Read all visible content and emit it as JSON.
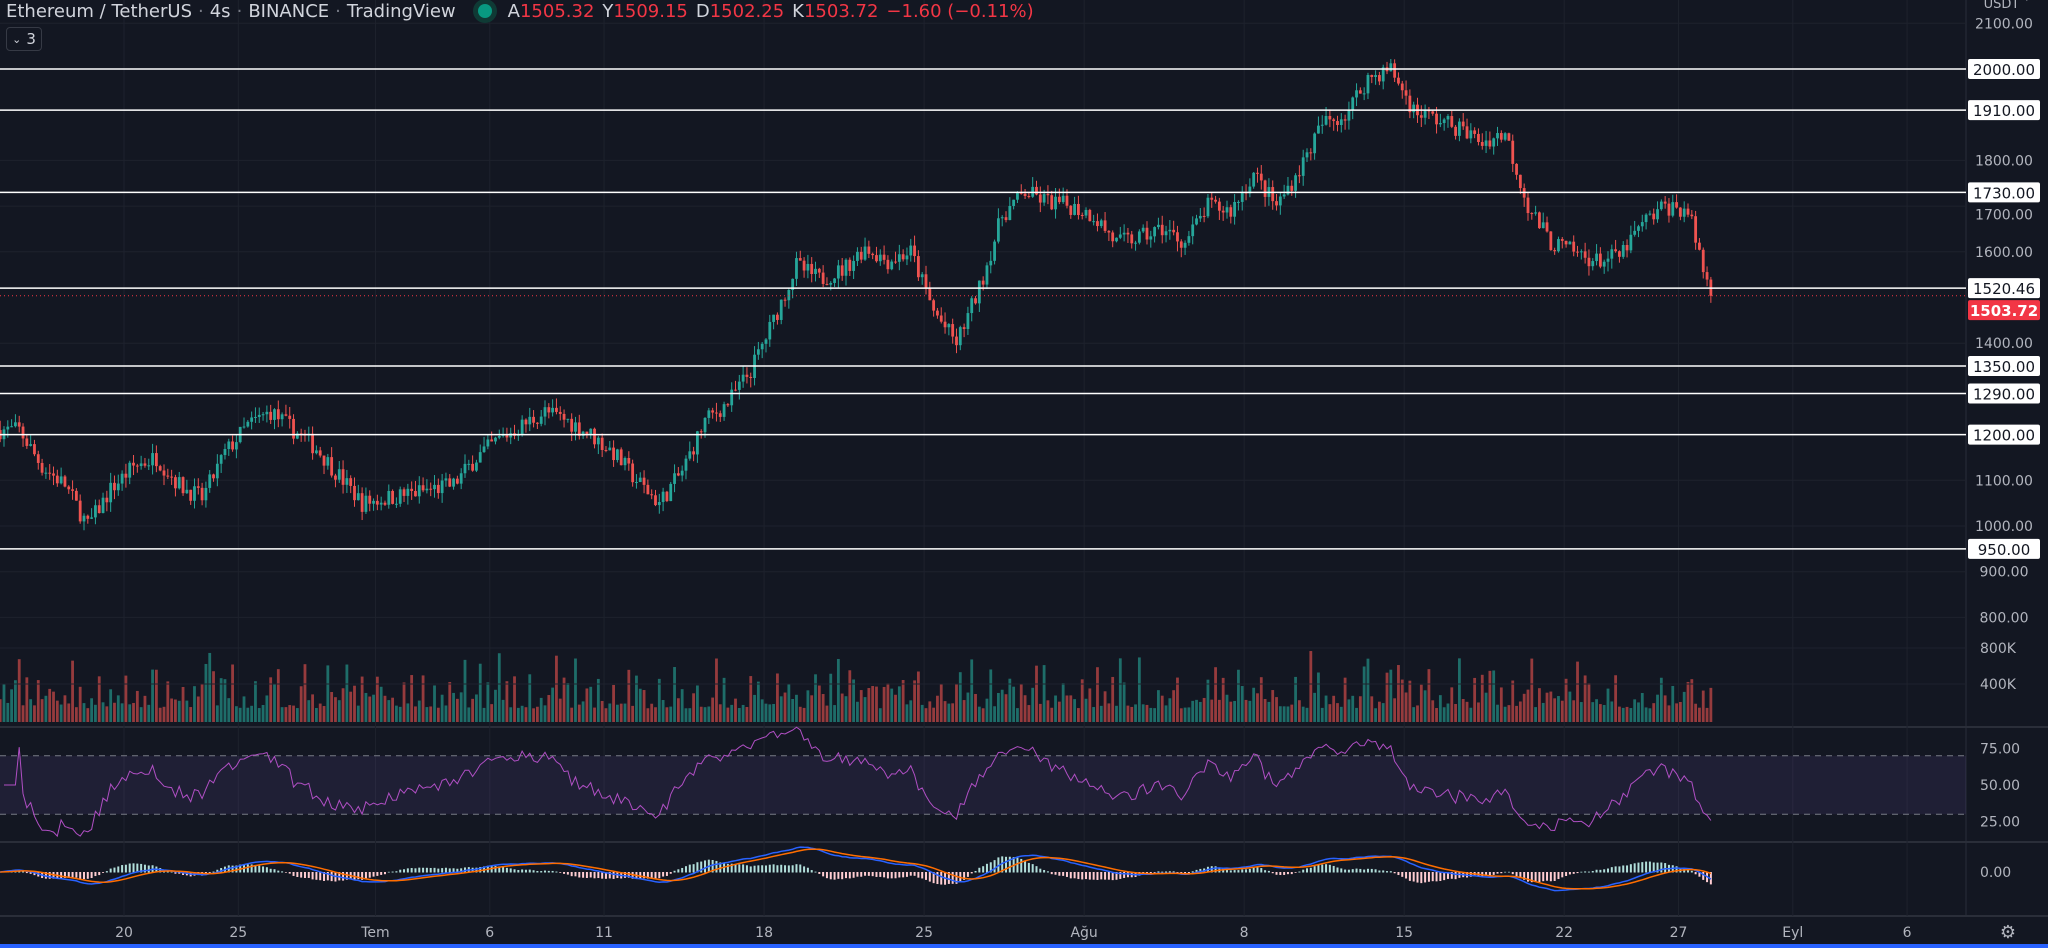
{
  "header": {
    "symbol": "Ethereum / TetherUS",
    "interval": "4s",
    "exchange": "BINANCE",
    "source": "TradingView",
    "ohlc": [
      {
        "key": "A",
        "value": "1505.32"
      },
      {
        "key": "Y",
        "value": "1509.15"
      },
      {
        "key": "D",
        "value": "1502.25"
      },
      {
        "key": "K",
        "value": "1503.72"
      }
    ],
    "change": "−1.60 (−0.11%)",
    "indicator_count": "3",
    "currency": "USDT"
  },
  "colors": {
    "background": "#131722",
    "up": "#26a69a",
    "down": "#ef5350",
    "last_price": "#f23645",
    "rsi": "#b04fc4",
    "macd": "#2962ff",
    "signal": "#ff6d00",
    "level_line": "#ffffff"
  },
  "chart_data": {
    "type": "candlestick",
    "title": "Ethereum / TetherUS",
    "price_axis": {
      "ylim": [
        800,
        2100
      ],
      "ticks": [
        "2100.00",
        "2000.00",
        "1800.00",
        "1700.00",
        "1600.00",
        "1400.00",
        "1100.00",
        "1000.00",
        "900.00",
        "800.00"
      ]
    },
    "levels": [
      "2000.00",
      "1910.00",
      "1730.00",
      "1520.46",
      "1350.00",
      "1290.00",
      "1200.00",
      "950.00"
    ],
    "last_price": "1503.72",
    "time_axis": [
      {
        "label": "20",
        "date": "06-20"
      },
      {
        "label": "25",
        "date": "06-25"
      },
      {
        "label": "Tem",
        "date": "07-01"
      },
      {
        "label": "6",
        "date": "07-06"
      },
      {
        "label": "11",
        "date": "07-11"
      },
      {
        "label": "18",
        "date": "07-18"
      },
      {
        "label": "25",
        "date": "07-25"
      },
      {
        "label": "Ağu",
        "date": "08-01"
      },
      {
        "label": "8",
        "date": "08-08"
      },
      {
        "label": "15",
        "date": "08-15"
      },
      {
        "label": "22",
        "date": "08-22"
      },
      {
        "label": "27",
        "date": "08-27"
      },
      {
        "label": "Eyl",
        "date": "09-01"
      },
      {
        "label": "6",
        "date": "09-06"
      }
    ],
    "daily_close_start": "06-15",
    "daily_close": [
      1210,
      1130,
      1090,
      1000,
      1080,
      1130,
      1150,
      1090,
      1060,
      1160,
      1220,
      1250,
      1210,
      1170,
      1110,
      1050,
      1060,
      1070,
      1080,
      1090,
      1150,
      1190,
      1220,
      1250,
      1230,
      1200,
      1160,
      1100,
      1050,
      1120,
      1230,
      1270,
      1340,
      1450,
      1570,
      1540,
      1560,
      1610,
      1580,
      1600,
      1470,
      1400,
      1520,
      1680,
      1730,
      1710,
      1700,
      1680,
      1620,
      1630,
      1650,
      1620,
      1700,
      1690,
      1770,
      1700,
      1780,
      1880,
      1900,
      1980,
      2000,
      1910,
      1890,
      1870,
      1840,
      1860,
      1700,
      1620,
      1600,
      1580,
      1590,
      1660,
      1700,
      1690,
      1503.72
    ],
    "volume_axis": {
      "ticks": [
        "800K",
        "400K"
      ]
    },
    "rsi_axis": {
      "ticks": [
        "75.00",
        "50.00",
        "25.00"
      ],
      "bands": [
        30,
        70
      ]
    },
    "macd_axis": {
      "ticks": [
        "0.00"
      ]
    }
  }
}
